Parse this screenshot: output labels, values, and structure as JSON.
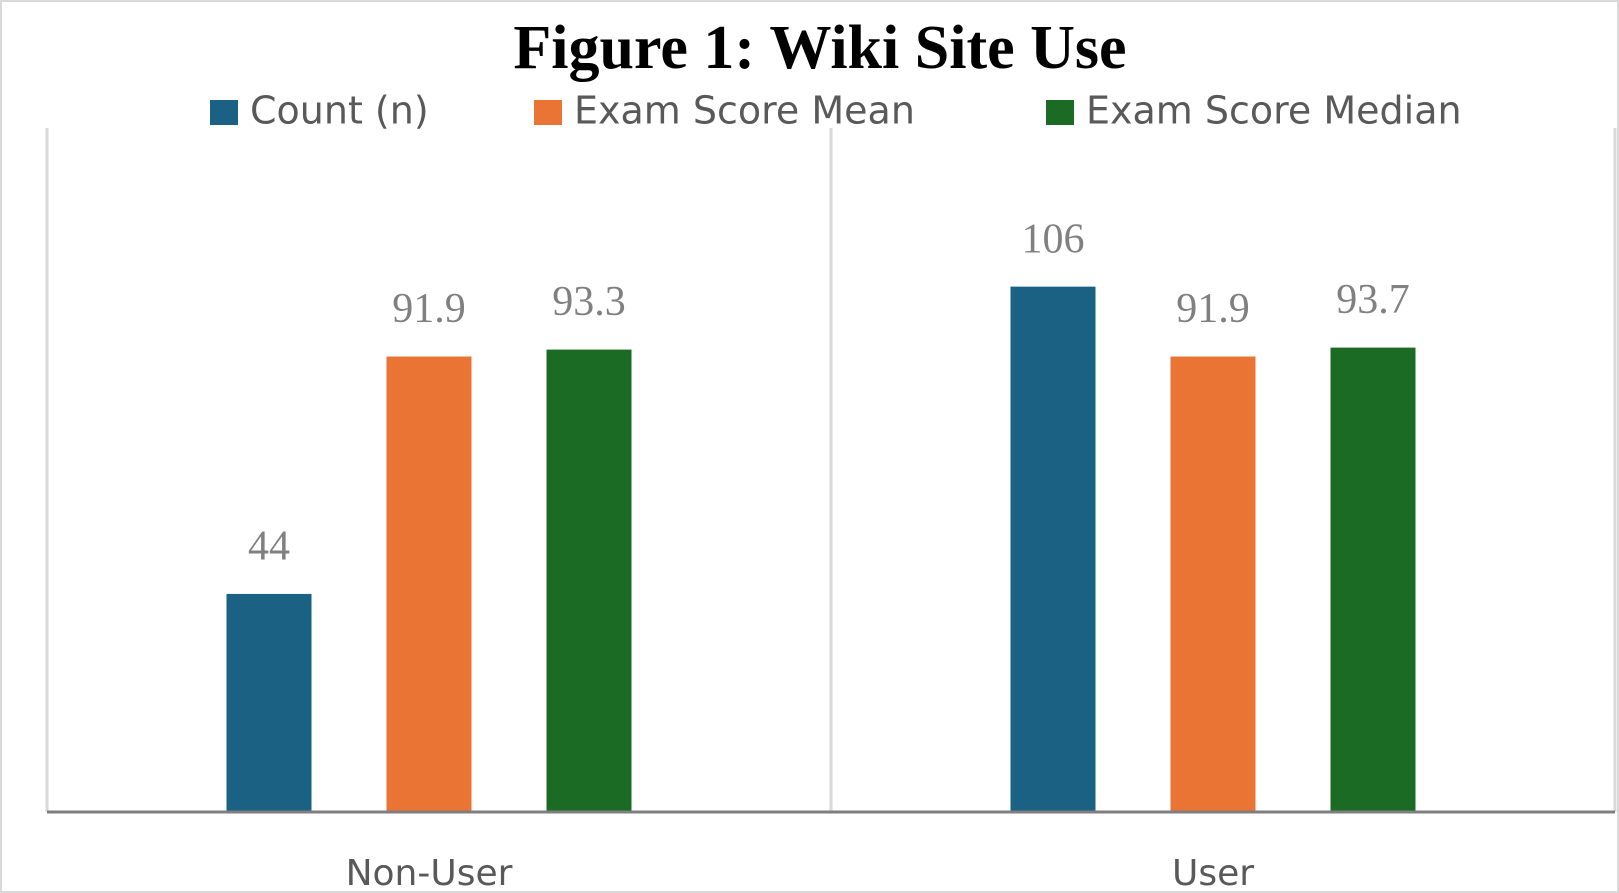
{
  "chart_data": {
    "type": "bar",
    "title": "Figure 1: Wiki Site Use",
    "categories": [
      "Non-User",
      "User"
    ],
    "series": [
      {
        "name": "Count (n)",
        "color": "#1a6184",
        "values": [
          44,
          106
        ]
      },
      {
        "name": "Exam Score Mean",
        "color": "#ea7434",
        "values": [
          91.9,
          91.9
        ]
      },
      {
        "name": "Exam Score Median",
        "color": "#1b6b24",
        "values": [
          93.3,
          93.7
        ]
      }
    ],
    "ylim": [
      0,
      137
    ],
    "grid": false,
    "legend": "top"
  }
}
